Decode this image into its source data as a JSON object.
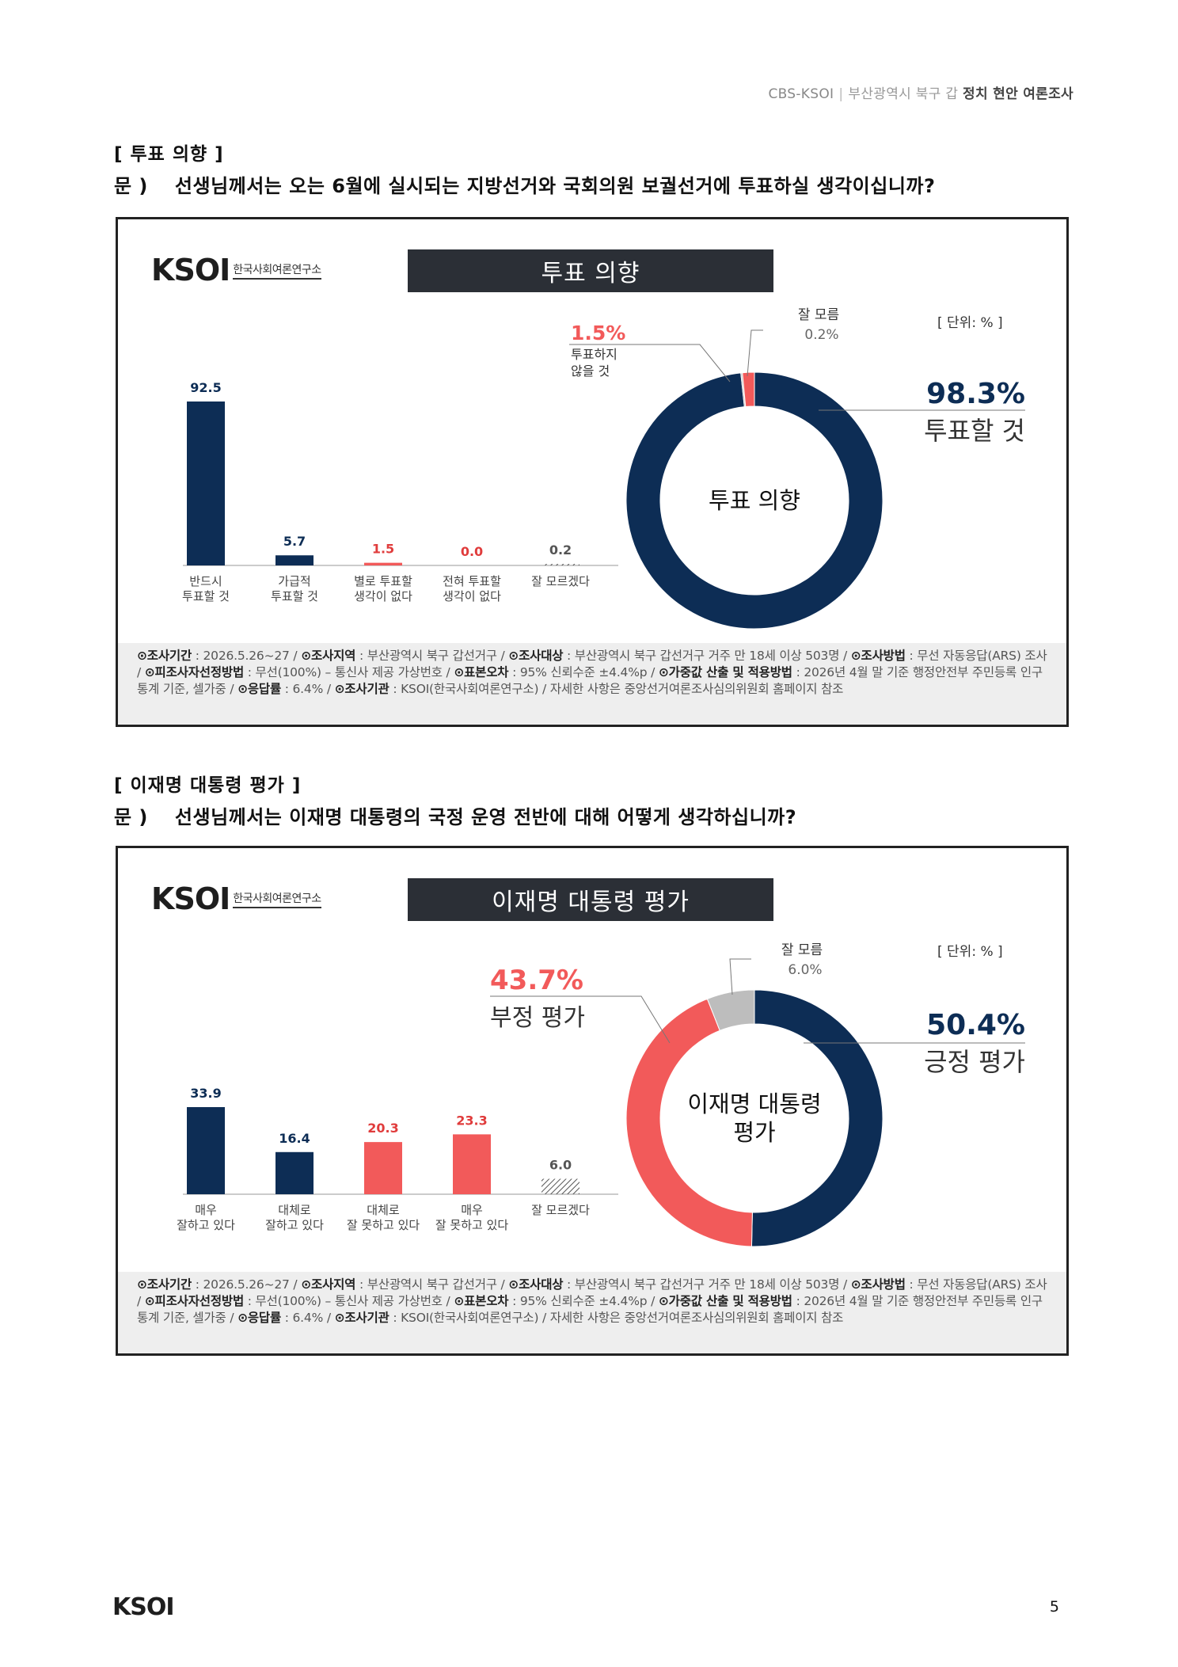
{
  "header": {
    "org": "CBS-KSOI",
    "region": "부산광역시 북구 갑",
    "title": "정치 현안 여론조사"
  },
  "page_number": "5",
  "logo": {
    "mark": "KSOI",
    "sub": "한국사회여론연구소"
  },
  "sections": [
    {
      "section_title": "[ 투표 의향 ]",
      "question_prefix": "문 )",
      "question": "선생님께서는 오는 6월에 실시되는 지방선거와 국회의원 보궐선거에 투표하실 생각이십니까?",
      "chart_title": "투표 의향",
      "unit": "[ 단위: % ]",
      "donut_center": [
        "투표 의향"
      ],
      "chart_data": {
        "type": "bar",
        "categories": [
          [
            "반드시",
            "투표할 것"
          ],
          [
            "가급적",
            "투표할 것"
          ],
          [
            "별로 투표할",
            "생각이 없다"
          ],
          [
            "전혀 투표할",
            "생각이 없다"
          ],
          [
            "잘 모르겠다"
          ]
        ],
        "values": [
          92.5,
          5.7,
          1.5,
          0.0,
          0.2
        ],
        "labels": [
          "92.5",
          "5.7",
          "1.5",
          "0.0",
          "0.2"
        ],
        "colors": [
          "#0d2d55",
          "#0d2d55",
          "#f25a5a",
          "#f25a5a",
          "hatch"
        ],
        "label_colors": [
          "#0d2d55",
          "#0d2d55",
          "#e03c3c",
          "#e03c3c",
          "#555555"
        ]
      },
      "donut_data": {
        "type": "pie",
        "slices": [
          {
            "name": "투표할 것",
            "value": 98.3,
            "label": "98.3%",
            "color": "#0d2d55"
          },
          {
            "name": "잘 모름",
            "value": 0.2,
            "label": "0.2%",
            "color": "#bdbdbd"
          },
          {
            "name": "투표하지 않을 것",
            "value": 1.5,
            "label": "1.5%",
            "color": "#f25a5a"
          }
        ]
      },
      "donut_labels": {
        "main_value": "98.3%",
        "main_name": "투표할 것",
        "neg_value": "1.5%",
        "neg_name": [
          "투표하지",
          "않을 것"
        ],
        "dk_name": "잘 모름",
        "dk_value": "0.2%"
      },
      "footnote": {
        "k1": "⊙조사기간",
        "v1": " : 2026.5.26~27 / ",
        "k2": "⊙조사지역",
        "v2": " : 부산광역시 북구 갑선거구 / ",
        "k3": "⊙조사대상",
        "v3": " : 부산광역시 북구 갑선거구 거주 만 18세 이상 503명 / ",
        "k4": "⊙조사방법",
        "v4": " : 무선 자동응답(ARS) 조사 / ",
        "k5": "⊙피조사자선정방법",
        "v5": " : 무선(100%) – 통신사 제공 가상번호 / ",
        "k6": "⊙표본오차",
        "v6": " : 95% 신뢰수준 ±4.4%p / ",
        "k7": "⊙가중값 산출 및 적용방법",
        "v7": " : 2026년 4월 말 기준 행정안전부 주민등록 인구통계 기준, 셀가중 / ",
        "k8": "⊙응답률",
        "v8": " : 6.4% / ",
        "k9": "⊙조사기관",
        "v9": " : KSOI(한국사회여론연구소) / ",
        "v10": "자세한 사항은 중앙선거여론조사심의위원회 홈페이지 참조"
      }
    },
    {
      "section_title": "[ 이재명 대통령 평가 ]",
      "question_prefix": "문 )",
      "question": "선생님께서는 이재명 대통령의 국정 운영 전반에 대해 어떻게 생각하십니까?",
      "chart_title": "이재명 대통령 평가",
      "unit": "[ 단위: % ]",
      "donut_center": [
        "이재명 대통령",
        "평가"
      ],
      "chart_data": {
        "type": "bar",
        "categories": [
          [
            "매우",
            "잘하고 있다"
          ],
          [
            "대체로",
            "잘하고 있다"
          ],
          [
            "대체로",
            "잘 못하고 있다"
          ],
          [
            "매우",
            "잘 못하고 있다"
          ],
          [
            "잘 모르겠다"
          ]
        ],
        "values": [
          33.9,
          16.4,
          20.3,
          23.3,
          6.0
        ],
        "labels": [
          "33.9",
          "16.4",
          "20.3",
          "23.3",
          "6.0"
        ],
        "colors": [
          "#0d2d55",
          "#0d2d55",
          "#f25a5a",
          "#f25a5a",
          "hatch"
        ],
        "label_colors": [
          "#0d2d55",
          "#0d2d55",
          "#e03c3c",
          "#e03c3c",
          "#555555"
        ]
      },
      "donut_data": {
        "type": "pie",
        "slices": [
          {
            "name": "긍정 평가",
            "value": 50.4,
            "label": "50.4%",
            "color": "#0d2d55"
          },
          {
            "name": "부정 평가",
            "value": 43.7,
            "label": "43.7%",
            "color": "#f25a5a"
          },
          {
            "name": "잘 모름",
            "value": 6.0,
            "label": "6.0%",
            "color": "#bdbdbd"
          }
        ]
      },
      "donut_labels": {
        "main_value": "50.4%",
        "main_name": "긍정 평가",
        "neg_value": "43.7%",
        "neg_name": [
          "부정 평가"
        ],
        "dk_name": "잘 모름",
        "dk_value": "6.0%"
      },
      "footnote": {
        "k1": "⊙조사기간",
        "v1": " : 2026.5.26~27 / ",
        "k2": "⊙조사지역",
        "v2": " : 부산광역시 북구 갑선거구 / ",
        "k3": "⊙조사대상",
        "v3": " : 부산광역시 북구 갑선거구 거주 만 18세 이상 503명 / ",
        "k4": "⊙조사방법",
        "v4": " : 무선 자동응답(ARS) 조사 / ",
        "k5": "⊙피조사자선정방법",
        "v5": " : 무선(100%) – 통신사 제공 가상번호 / ",
        "k6": "⊙표본오차",
        "v6": " : 95% 신뢰수준 ±4.4%p / ",
        "k7": "⊙가중값 산출 및 적용방법",
        "v7": " : 2026년 4월 말 기준 행정안전부 주민등록 인구통계 기준, 셀가중 / ",
        "k8": "⊙응답률",
        "v8": " : 6.4% / ",
        "k9": "⊙조사기관",
        "v9": " : KSOI(한국사회여론연구소) / ",
        "v10": "자세한 사항은 중앙선거여론조사심의위원회 홈페이지 참조"
      }
    }
  ]
}
